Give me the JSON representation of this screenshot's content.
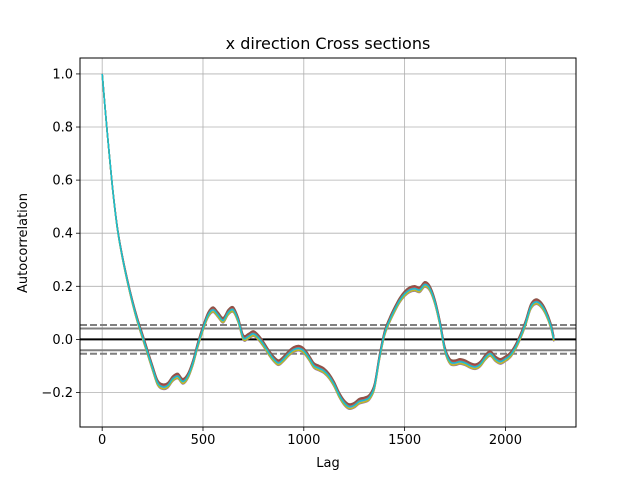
{
  "chart_data": {
    "type": "line",
    "title": "x direction Cross sections",
    "xlabel": "Lag",
    "ylabel": "Autocorrelation",
    "xlim": [
      -110,
      2350
    ],
    "ylim": [
      -0.33,
      1.06
    ],
    "xticks": [
      0,
      500,
      1000,
      1500,
      2000
    ],
    "xtick_labels": [
      "0",
      "500",
      "1000",
      "1500",
      "2000"
    ],
    "yticks": [
      -0.2,
      0.0,
      0.2,
      0.4,
      0.6,
      0.8,
      1.0
    ],
    "ytick_labels": [
      "−0.2",
      "0.0",
      "0.2",
      "0.4",
      "0.6",
      "0.8",
      "1.0"
    ],
    "grid": true,
    "reference_lines": {
      "zero": 0.0,
      "z95": 0.041,
      "z99": 0.054
    },
    "base_curve": [
      [
        0,
        1.0
      ],
      [
        25,
        0.78
      ],
      [
        50,
        0.58
      ],
      [
        75,
        0.42
      ],
      [
        100,
        0.31
      ],
      [
        125,
        0.22
      ],
      [
        150,
        0.14
      ],
      [
        175,
        0.07
      ],
      [
        200,
        0.01
      ],
      [
        225,
        -0.05
      ],
      [
        250,
        -0.11
      ],
      [
        275,
        -0.165
      ],
      [
        300,
        -0.18
      ],
      [
        325,
        -0.175
      ],
      [
        350,
        -0.15
      ],
      [
        375,
        -0.14
      ],
      [
        400,
        -0.16
      ],
      [
        425,
        -0.14
      ],
      [
        450,
        -0.09
      ],
      [
        475,
        -0.02
      ],
      [
        500,
        0.04
      ],
      [
        525,
        0.09
      ],
      [
        550,
        0.11
      ],
      [
        575,
        0.09
      ],
      [
        600,
        0.07
      ],
      [
        625,
        0.1
      ],
      [
        650,
        0.11
      ],
      [
        675,
        0.07
      ],
      [
        700,
        0.005
      ],
      [
        725,
        0.01
      ],
      [
        750,
        0.02
      ],
      [
        775,
        0.005
      ],
      [
        800,
        -0.02
      ],
      [
        825,
        -0.05
      ],
      [
        850,
        -0.075
      ],
      [
        875,
        -0.09
      ],
      [
        900,
        -0.075
      ],
      [
        925,
        -0.055
      ],
      [
        950,
        -0.04
      ],
      [
        975,
        -0.035
      ],
      [
        1000,
        -0.045
      ],
      [
        1025,
        -0.07
      ],
      [
        1050,
        -0.1
      ],
      [
        1075,
        -0.11
      ],
      [
        1100,
        -0.12
      ],
      [
        1125,
        -0.14
      ],
      [
        1150,
        -0.17
      ],
      [
        1175,
        -0.21
      ],
      [
        1200,
        -0.24
      ],
      [
        1225,
        -0.255
      ],
      [
        1250,
        -0.25
      ],
      [
        1275,
        -0.235
      ],
      [
        1300,
        -0.23
      ],
      [
        1325,
        -0.22
      ],
      [
        1350,
        -0.18
      ],
      [
        1375,
        -0.07
      ],
      [
        1400,
        0.02
      ],
      [
        1425,
        0.07
      ],
      [
        1450,
        0.11
      ],
      [
        1475,
        0.145
      ],
      [
        1500,
        0.17
      ],
      [
        1525,
        0.185
      ],
      [
        1550,
        0.19
      ],
      [
        1575,
        0.185
      ],
      [
        1600,
        0.205
      ],
      [
        1625,
        0.19
      ],
      [
        1650,
        0.14
      ],
      [
        1675,
        0.06
      ],
      [
        1700,
        -0.04
      ],
      [
        1725,
        -0.085
      ],
      [
        1750,
        -0.09
      ],
      [
        1775,
        -0.085
      ],
      [
        1800,
        -0.09
      ],
      [
        1825,
        -0.1
      ],
      [
        1850,
        -0.105
      ],
      [
        1875,
        -0.095
      ],
      [
        1900,
        -0.07
      ],
      [
        1925,
        -0.055
      ],
      [
        1950,
        -0.075
      ],
      [
        1975,
        -0.085
      ],
      [
        2000,
        -0.075
      ],
      [
        2025,
        -0.06
      ],
      [
        2050,
        -0.03
      ],
      [
        2075,
        0.01
      ],
      [
        2100,
        0.06
      ],
      [
        2125,
        0.12
      ],
      [
        2150,
        0.14
      ],
      [
        2175,
        0.13
      ],
      [
        2200,
        0.1
      ],
      [
        2225,
        0.05
      ],
      [
        2240,
        0.0
      ]
    ],
    "series": [
      {
        "color": "#1f77b4",
        "offset": 0.0
      },
      {
        "color": "#ff7f0e",
        "offset": 0.006
      },
      {
        "color": "#2ca02c",
        "offset": -0.004
      },
      {
        "color": "#d62728",
        "offset": 0.009
      },
      {
        "color": "#9467bd",
        "offset": -0.008
      },
      {
        "color": "#8c564b",
        "offset": 0.012
      },
      {
        "color": "#e377c2",
        "offset": -0.003
      },
      {
        "color": "#7f7f7f",
        "offset": 0.004
      },
      {
        "color": "#bcbd22",
        "offset": -0.006
      },
      {
        "color": "#17becf",
        "offset": 0.001
      }
    ]
  }
}
